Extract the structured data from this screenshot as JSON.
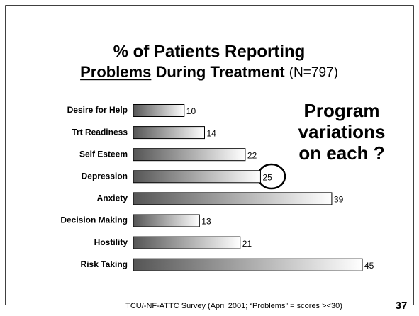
{
  "chart_data": {
    "type": "bar",
    "orientation": "horizontal",
    "title_line1": "% of Patients Reporting",
    "title_emphasis": "Problems",
    "title_rest": "During Treatment",
    "subtitle": "(N=797)",
    "categories": [
      "Desire for Help",
      "Trt Readiness",
      "Self Esteem",
      "Depression",
      "Anxiety",
      "Decision Making",
      "Hostility",
      "Risk Taking"
    ],
    "values": [
      10,
      14,
      22,
      25,
      39,
      13,
      21,
      45
    ],
    "color": "#555555",
    "annotation": [
      "Program",
      "variations",
      "on each ?"
    ],
    "source": "TCU/-NF-ATTC Survey (April 2001; “Problems” = scores ><30)",
    "page_number": "37"
  }
}
